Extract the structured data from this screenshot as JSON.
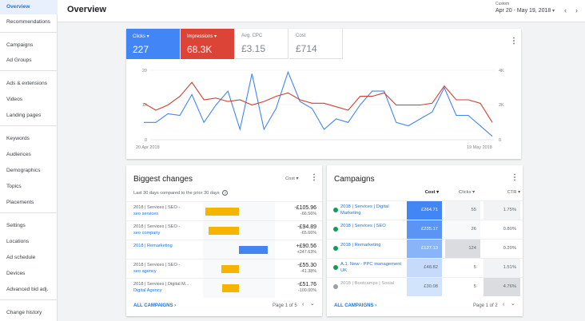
{
  "sidebar": {
    "items": [
      {
        "label": "Overview"
      },
      {
        "label": "Recommendations"
      },
      {
        "label": "Campaigns"
      },
      {
        "label": "Ad Groups"
      },
      {
        "label": "Ads & extensions"
      },
      {
        "label": "Videos"
      },
      {
        "label": "Landing pages"
      },
      {
        "label": "Keywords"
      },
      {
        "label": "Audiences"
      },
      {
        "label": "Demographics"
      },
      {
        "label": "Topics"
      },
      {
        "label": "Placements"
      },
      {
        "label": "Settings"
      },
      {
        "label": "Locations"
      },
      {
        "label": "Ad schedule"
      },
      {
        "label": "Devices"
      },
      {
        "label": "Advanced bid adj."
      },
      {
        "label": "Change history"
      }
    ]
  },
  "header": {
    "title": "Overview",
    "date_label": "Custom",
    "date_range": "Apr 20 - May 19, 2018",
    "caret": "▾",
    "prev": "‹",
    "next": "›"
  },
  "metrics": [
    {
      "label": "Clicks ▾",
      "value": "227",
      "color": "#4285f4"
    },
    {
      "label": "Impressions ▾",
      "value": "68.3K",
      "color": "#db4437"
    },
    {
      "label": "Avg. CPC",
      "value": "£3.15"
    },
    {
      "label": "Cost",
      "value": "£714"
    }
  ],
  "chart_data": {
    "type": "line",
    "x_start_label": "20 Apr 2018",
    "x_end_label": "19 May 2018",
    "left_axis": {
      "ticks": [
        "20",
        "10",
        "0"
      ],
      "ylim": [
        0,
        20
      ]
    },
    "right_axis": {
      "ticks": [
        "4K",
        "2K",
        "0"
      ],
      "ylim": [
        0,
        4000
      ]
    },
    "series": [
      {
        "color": "#4285f4",
        "axis": "left",
        "values": [
          5,
          5,
          7.5,
          7,
          13,
          5,
          10,
          14,
          3,
          19,
          3,
          9,
          19.5,
          11,
          9,
          3,
          6,
          5,
          10,
          14,
          14,
          5,
          4,
          6,
          8,
          15,
          7,
          7,
          4,
          1
        ]
      },
      {
        "color": "#d23f31",
        "axis": "right",
        "values": [
          2100,
          1700,
          2000,
          2500,
          3300,
          2300,
          2400,
          2200,
          2300,
          2000,
          2200,
          2500,
          2700,
          2300,
          2100,
          2100,
          1900,
          1700,
          2500,
          2500,
          2700,
          2000,
          2000,
          2000,
          2100,
          3100,
          2300,
          2300,
          2100,
          1000
        ]
      }
    ]
  },
  "biggest_changes": {
    "title": "Biggest changes",
    "subtitle": "Last 30 days compared to the prior 30 days",
    "help_icon": "?",
    "dropdown": "Cost ▾",
    "rows": [
      {
        "line1": "2018 | Services | SEO -",
        "line2": "seo services",
        "v1": "-£105.96",
        "v2": "-66.56%",
        "value": -105.96,
        "color": "#f4b400"
      },
      {
        "line1": "2018 | Services | SEO -",
        "line2": "seo company",
        "v1": "-£94.89",
        "v2": "-65.66%",
        "value": -94.89,
        "color": "#f4b400"
      },
      {
        "line1": "",
        "line2": "2018 | Remarketing",
        "v1": "+£90.56",
        "v2": "+247.63%",
        "value": 90.56,
        "color": "#4285f4"
      },
      {
        "line1": "2018 | Services | SEO -",
        "line2": "seo agency",
        "v1": "-£55.30",
        "v2": "-41.38%",
        "value": -55.3,
        "color": "#f4b400"
      },
      {
        "line1": "2018 | Services | Digital M...",
        "line2": "Digital Agency",
        "v1": "-£51.76",
        "v2": "-100.00%",
        "value": -51.76,
        "color": "#f4b400"
      }
    ],
    "footer_link": "ALL CAMPAIGNS ›",
    "pager": "Page 1 of 5"
  },
  "campaigns": {
    "title": "Campaigns",
    "headers": {
      "cost": "Cost ▾",
      "clicks": "Clicks ▾",
      "ctr": "CTR ▾"
    },
    "rows": [
      {
        "name": "2018 | Services | Digital Marketing",
        "cost": "£264.71",
        "clicks": "55",
        "ctr": "1.75%",
        "status": "#0f9d58",
        "cost_bg": "#4285f4",
        "cost_fg": "#ffffff",
        "clicks_bg": "#f1f3f4",
        "ctr_bg": "#f1f3f4"
      },
      {
        "name": "2018 | Services | SEO",
        "cost": "£235.17",
        "clicks": "26",
        "ctr": "0.80%",
        "status": "#0f9d58",
        "cost_bg": "#5a94f5",
        "cost_fg": "#ffffff",
        "clicks_bg": "#f8f9fa",
        "ctr_bg": "#ffffff"
      },
      {
        "name": "2018 | Remarketing",
        "cost": "£127.13",
        "clicks": "124",
        "ctr": "0.20%",
        "status": "#0f9d58",
        "cost_bg": "#8ab4f8",
        "cost_fg": "#ffffff",
        "clicks_bg": "#dadce0",
        "ctr_bg": "#ffffff"
      },
      {
        "name": "A.1. New - PPC management UK",
        "cost": "£48.82",
        "clicks": "5",
        "ctr": "1.51%",
        "status": "#0f9d58",
        "cost_bg": "#c6dafc",
        "cost_fg": "#5f6368",
        "clicks_bg": "#ffffff",
        "ctr_bg": "#f1f3f4"
      },
      {
        "name": "2018 | Bootcamps | Social",
        "cost": "£30.08",
        "clicks": "5",
        "ctr": "4.76%",
        "status": "#9aa0a6",
        "cost_bg": "#d2e3fc",
        "cost_fg": "#5f6368",
        "clicks_bg": "#ffffff",
        "ctr_bg": "#dadce0"
      }
    ],
    "footer_link": "ALL CAMPAIGNS ›",
    "pager": "Page 1 of 2"
  },
  "icons": {
    "kebab": "⋮",
    "chev_left": "‹",
    "chev_right": "›",
    "chev_down": "⌄"
  }
}
